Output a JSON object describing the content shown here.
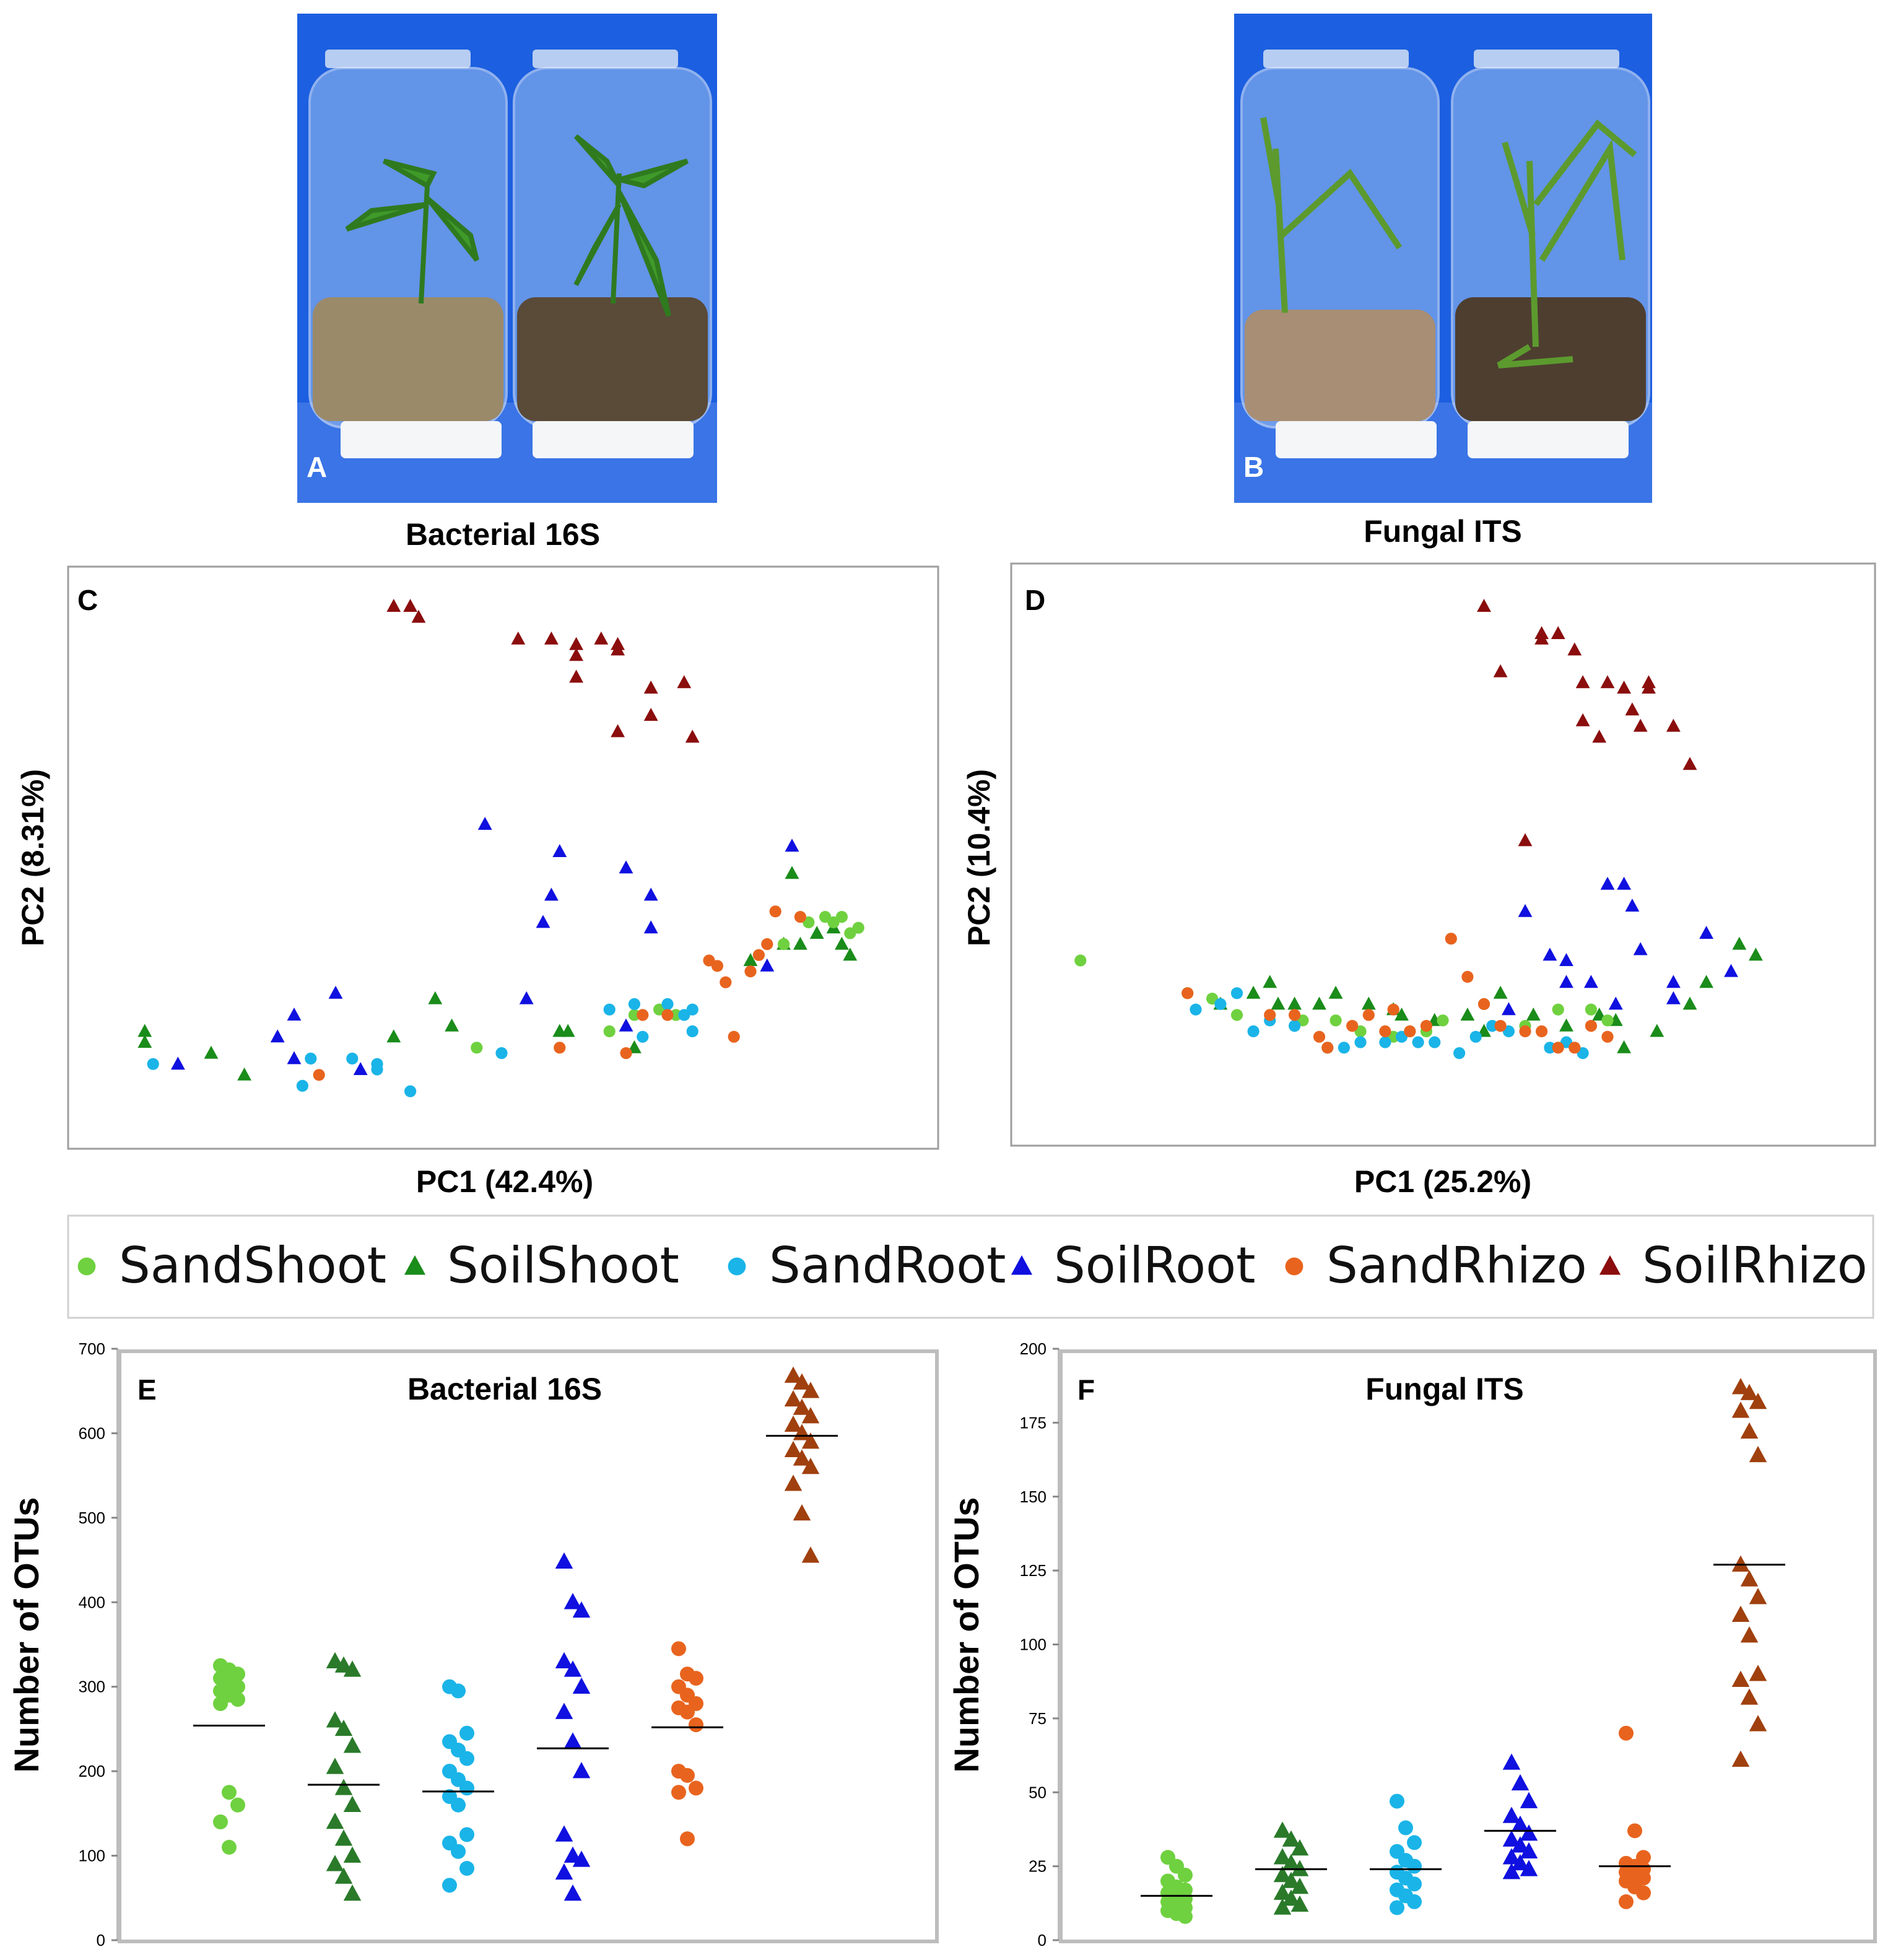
{
  "colors": {
    "SandShoot": "#6fd13f",
    "SoilShoot": "#1a8c1a",
    "SandRoot": "#1ab4e8",
    "SoilRoot": "#1010e0",
    "SandRhizo": "#e8641e",
    "SoilRhizo": "#8b0d0d",
    "SoilRhizoOTU": "#a0400e",
    "SoilShootOTU": "#2a7a2a",
    "jar_bg": "#1c5fe0",
    "frame": "#bdbdbd"
  },
  "photo_a": {
    "label": "A",
    "caption": "Bacterial 16S"
  },
  "photo_b": {
    "label": "B",
    "caption": "Fungal ITS"
  },
  "legend": {
    "items": [
      {
        "key": "SandShoot",
        "label": "SandShoot",
        "marker": "circle"
      },
      {
        "key": "SoilShoot",
        "label": "SoilShoot",
        "marker": "triangle"
      },
      {
        "key": "SandRoot",
        "label": "SandRoot",
        "marker": "circle"
      },
      {
        "key": "SoilRoot",
        "label": "SoilRoot",
        "marker": "triangle"
      },
      {
        "key": "SandRhizo",
        "label": "SandRhizo",
        "marker": "circle"
      },
      {
        "key": "SoilRhizo",
        "label": "SoilRhizo",
        "marker": "triangle"
      }
    ]
  },
  "chart_data": [
    {
      "panel": "C",
      "type": "scatter",
      "title": "Bacterial 16S",
      "xlabel": "PC1 (42.4%)",
      "ylabel": "PC2 (8.31%)",
      "xlim": [
        0,
        100
      ],
      "ylim": [
        0,
        100
      ],
      "grid": false,
      "series": [
        {
          "name": "SoilRhizo",
          "points": [
            [
              37,
              95
            ],
            [
              39,
              95
            ],
            [
              40,
              93
            ],
            [
              52,
              89
            ],
            [
              56,
              89
            ],
            [
              59,
              88
            ],
            [
              59,
              86
            ],
            [
              62,
              89
            ],
            [
              64,
              88
            ],
            [
              64,
              87
            ],
            [
              59,
              82
            ],
            [
              68,
              80
            ],
            [
              72,
              81
            ],
            [
              68,
              75
            ],
            [
              64,
              72
            ],
            [
              73,
              71
            ]
          ]
        },
        {
          "name": "SoilRoot",
          "points": [
            [
              48,
              55
            ],
            [
              57,
              50
            ],
            [
              56,
              42
            ],
            [
              55,
              37
            ],
            [
              65,
              47
            ],
            [
              68,
              42
            ],
            [
              68,
              36
            ],
            [
              85,
              51
            ],
            [
              30,
              24
            ],
            [
              25,
              20
            ],
            [
              23,
              16
            ],
            [
              25,
              12
            ],
            [
              11,
              11
            ],
            [
              33,
              10
            ],
            [
              53,
              23
            ],
            [
              65,
              18
            ],
            [
              82,
              29
            ]
          ]
        },
        {
          "name": "SoilShoot",
          "points": [
            [
              7,
              17
            ],
            [
              7,
              15
            ],
            [
              15,
              13
            ],
            [
              19,
              9
            ],
            [
              37,
              16
            ],
            [
              42,
              23
            ],
            [
              44,
              18
            ],
            [
              57,
              17
            ],
            [
              58,
              17
            ],
            [
              66,
              14
            ],
            [
              80,
              30
            ],
            [
              84,
              33
            ],
            [
              85,
              46
            ],
            [
              86,
              33
            ],
            [
              88,
              35
            ],
            [
              90,
              36
            ],
            [
              91,
              33
            ],
            [
              92,
              31
            ]
          ]
        },
        {
          "name": "SandShoot",
          "points": [
            [
              47,
              14
            ],
            [
              63,
              17
            ],
            [
              66,
              20
            ],
            [
              69,
              21
            ],
            [
              71,
              20
            ],
            [
              84,
              33
            ],
            [
              87,
              37
            ],
            [
              89,
              38
            ],
            [
              90,
              37
            ],
            [
              91,
              38
            ],
            [
              92,
              35
            ],
            [
              93,
              36
            ]
          ]
        },
        {
          "name": "SandRoot",
          "points": [
            [
              8,
              11
            ],
            [
              26,
              7
            ],
            [
              27,
              12
            ],
            [
              32,
              12
            ],
            [
              35,
              11
            ],
            [
              35,
              10
            ],
            [
              39,
              6
            ],
            [
              50,
              13
            ],
            [
              63,
              21
            ],
            [
              66,
              22
            ],
            [
              67,
              16
            ],
            [
              70,
              22
            ],
            [
              72,
              20
            ],
            [
              73,
              17
            ],
            [
              73,
              21
            ]
          ]
        },
        {
          "name": "SandRhizo",
          "points": [
            [
              28,
              9
            ],
            [
              57,
              14
            ],
            [
              65,
              13
            ],
            [
              67,
              20
            ],
            [
              70,
              20
            ],
            [
              75,
              30
            ],
            [
              76,
              29
            ],
            [
              77,
              26
            ],
            [
              78,
              16
            ],
            [
              80,
              28
            ],
            [
              81,
              31
            ],
            [
              82,
              33
            ],
            [
              83,
              39
            ],
            [
              86,
              38
            ]
          ]
        }
      ]
    },
    {
      "panel": "D",
      "type": "scatter",
      "title": "Fungal ITS",
      "xlabel": "PC1 (25.2%)",
      "ylabel": "PC2 (10.4%)",
      "xlim": [
        0,
        100
      ],
      "ylim": [
        0,
        100
      ],
      "grid": false,
      "series": [
        {
          "name": "SoilRhizo",
          "points": [
            [
              55,
              95
            ],
            [
              62,
              90
            ],
            [
              62,
              89
            ],
            [
              64,
              90
            ],
            [
              57,
              83
            ],
            [
              66,
              87
            ],
            [
              67,
              81
            ],
            [
              67,
              74
            ],
            [
              69,
              71
            ],
            [
              70,
              81
            ],
            [
              72,
              80
            ],
            [
              73,
              76
            ],
            [
              74,
              73
            ],
            [
              75,
              81
            ],
            [
              75,
              80
            ],
            [
              78,
              73
            ],
            [
              80,
              66
            ],
            [
              60,
              52
            ]
          ]
        },
        {
          "name": "SoilRoot",
          "points": [
            [
              60,
              39
            ],
            [
              63,
              31
            ],
            [
              65,
              30
            ],
            [
              70,
              44
            ],
            [
              72,
              44
            ],
            [
              73,
              40
            ],
            [
              65,
              26
            ],
            [
              68,
              26
            ],
            [
              74,
              32
            ],
            [
              82,
              35
            ],
            [
              78,
              26
            ],
            [
              78,
              23
            ],
            [
              85,
              28
            ],
            [
              58,
              21
            ],
            [
              71,
              22
            ]
          ]
        },
        {
          "name": "SoilShoot",
          "points": [
            [
              23,
              22
            ],
            [
              27,
              24
            ],
            [
              29,
              26
            ],
            [
              30,
              22
            ],
            [
              32,
              22
            ],
            [
              35,
              22
            ],
            [
              37,
              24
            ],
            [
              41,
              22
            ],
            [
              44,
              21
            ],
            [
              45,
              20
            ],
            [
              49,
              19
            ],
            [
              53,
              20
            ],
            [
              55,
              17
            ],
            [
              57,
              24
            ],
            [
              61,
              20
            ],
            [
              65,
              18
            ],
            [
              69,
              20
            ],
            [
              71,
              19
            ],
            [
              72,
              14
            ],
            [
              76,
              17
            ],
            [
              80,
              22
            ],
            [
              82,
              26
            ],
            [
              86,
              33
            ],
            [
              88,
              31
            ]
          ]
        },
        {
          "name": "SandShoot",
          "points": [
            [
              6,
              30
            ],
            [
              19,
              24
            ],
            [
              22,
              23
            ],
            [
              25,
              20
            ],
            [
              33,
              19
            ],
            [
              37,
              19
            ],
            [
              40,
              17
            ],
            [
              44,
              16
            ],
            [
              46,
              17
            ],
            [
              48,
              17
            ],
            [
              50,
              19
            ],
            [
              55,
              22
            ],
            [
              60,
              18
            ],
            [
              64,
              21
            ],
            [
              68,
              21
            ],
            [
              70,
              19
            ]
          ]
        },
        {
          "name": "SandRoot",
          "points": [
            [
              20,
              21
            ],
            [
              23,
              22
            ],
            [
              25,
              24
            ],
            [
              27,
              17
            ],
            [
              29,
              19
            ],
            [
              32,
              18
            ],
            [
              36,
              14
            ],
            [
              38,
              14
            ],
            [
              40,
              15
            ],
            [
              43,
              15
            ],
            [
              45,
              16
            ],
            [
              47,
              15
            ],
            [
              49,
              15
            ],
            [
              52,
              13
            ],
            [
              54,
              16
            ],
            [
              56,
              18
            ],
            [
              58,
              17
            ],
            [
              63,
              14
            ],
            [
              65,
              15
            ],
            [
              67,
              13
            ]
          ]
        },
        {
          "name": "SandRhizo",
          "points": [
            [
              19,
              24
            ],
            [
              29,
              20
            ],
            [
              32,
              20
            ],
            [
              35,
              16
            ],
            [
              36,
              14
            ],
            [
              39,
              18
            ],
            [
              41,
              20
            ],
            [
              43,
              17
            ],
            [
              44,
              21
            ],
            [
              46,
              17
            ],
            [
              48,
              18
            ],
            [
              51,
              34
            ],
            [
              53,
              27
            ],
            [
              55,
              22
            ],
            [
              57,
              18
            ],
            [
              60,
              17
            ],
            [
              62,
              17
            ],
            [
              64,
              14
            ],
            [
              66,
              14
            ],
            [
              68,
              18
            ],
            [
              70,
              16
            ]
          ]
        }
      ]
    },
    {
      "panel": "E",
      "type": "dot-strip",
      "title": "Bacterial 16S",
      "ylabel": "Number of OTUs",
      "xlabel": "",
      "ylim": [
        0,
        700
      ],
      "y_ticks": [
        "0",
        "100",
        "200",
        "300",
        "400",
        "500",
        "600",
        "700"
      ],
      "categories": [
        "SandShoot",
        "SoilShoot",
        "SandRoot",
        "SoilRoot",
        "SandRhizo",
        "SoilRhizo"
      ],
      "means": [
        254,
        184,
        176,
        227,
        252,
        597
      ],
      "values": [
        [
          325,
          320,
          315,
          310,
          305,
          300,
          295,
          290,
          285,
          280,
          175,
          160,
          140,
          110
        ],
        [
          330,
          325,
          320,
          260,
          250,
          230,
          205,
          180,
          160,
          140,
          120,
          100,
          90,
          75,
          55
        ],
        [
          300,
          295,
          245,
          235,
          225,
          215,
          200,
          190,
          180,
          170,
          160,
          125,
          115,
          105,
          85,
          65
        ],
        [
          448,
          400,
          390,
          330,
          320,
          300,
          270,
          235,
          200,
          125,
          100,
          95,
          80,
          55
        ],
        [
          345,
          315,
          310,
          300,
          290,
          280,
          275,
          270,
          255,
          200,
          195,
          180,
          175,
          120
        ],
        [
          668,
          660,
          650,
          640,
          630,
          620,
          610,
          600,
          590,
          580,
          570,
          560,
          540,
          505,
          455
        ]
      ]
    },
    {
      "panel": "F",
      "type": "dot-strip",
      "title": "Fungal ITS",
      "ylabel": "Number of OTUs",
      "xlabel": "",
      "ylim": [
        0,
        200
      ],
      "y_ticks": [
        "0",
        "25",
        "50",
        "75",
        "100",
        "125",
        "150",
        "175",
        "200"
      ],
      "categories": [
        "SandShoot",
        "SoilShoot",
        "SandRoot",
        "SoilRoot",
        "SandRhizo",
        "SoilRhizo"
      ],
      "means": [
        15,
        24,
        24,
        37,
        25,
        127
      ],
      "values": [
        [
          28,
          25,
          22,
          20,
          18,
          17,
          16,
          15,
          14,
          13,
          12,
          11,
          10,
          9,
          8
        ],
        [
          37,
          34,
          31,
          28,
          26,
          24,
          22,
          20,
          18,
          16,
          14,
          12,
          11
        ],
        [
          47,
          38,
          33,
          30,
          27,
          25,
          23,
          21,
          19,
          17,
          15,
          13,
          11
        ],
        [
          60,
          53,
          47,
          42,
          39,
          36,
          34,
          32,
          30,
          28,
          26,
          24,
          23
        ],
        [
          70,
          37,
          28,
          26,
          25,
          24,
          23,
          22,
          21,
          20,
          18,
          16,
          13
        ],
        [
          187,
          185,
          182,
          179,
          172,
          164,
          127,
          122,
          116,
          110,
          103,
          90,
          88,
          82,
          73,
          61
        ]
      ]
    }
  ]
}
